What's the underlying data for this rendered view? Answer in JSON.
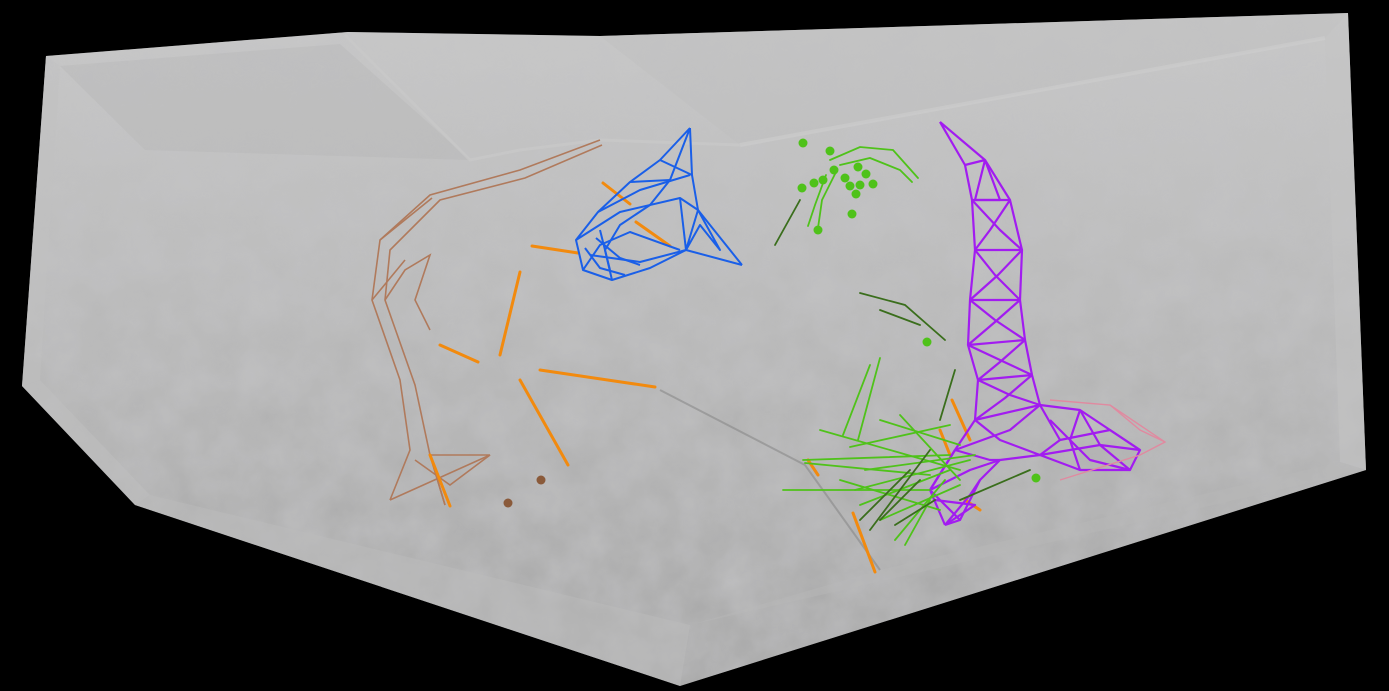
{
  "scene": {
    "background_color": "#000000",
    "surface_color": "#9a9a9a",
    "surface_edge_color": "#c8c8c8",
    "structures": [
      {
        "name": "brown-structure",
        "color": "#b07a5c"
      },
      {
        "name": "orange-segments",
        "color": "#f28a0e"
      },
      {
        "name": "blue-structure",
        "color": "#1a5fe8"
      },
      {
        "name": "purple-structure",
        "color": "#a21cf0"
      },
      {
        "name": "green-structure",
        "color": "#4fc21a"
      },
      {
        "name": "dark-green-segments",
        "color": "#3a6e1c"
      },
      {
        "name": "pink-structure",
        "color": "#e08aa0"
      },
      {
        "name": "brown-markers",
        "color": "#8a5a3a"
      }
    ]
  }
}
